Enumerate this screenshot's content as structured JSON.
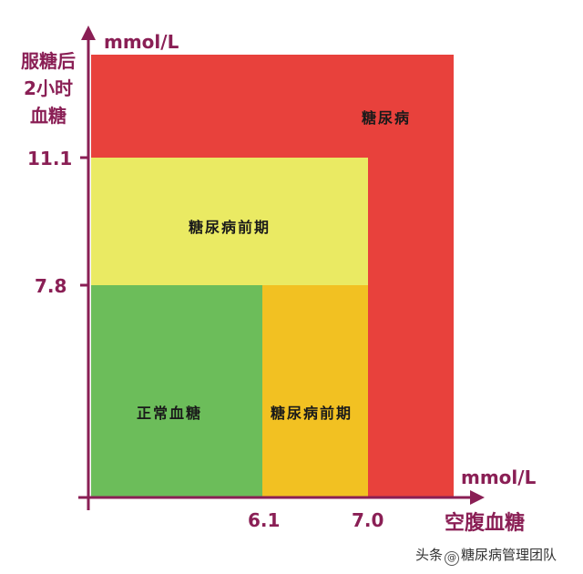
{
  "colors": {
    "diabetes": "#e8413c",
    "prediabetes_upper": "#eaea63",
    "prediabetes_right": "#f2c122",
    "normal": "#6cbd5a",
    "axis": "#8a1f55"
  },
  "axes": {
    "y_unit": "mmol/L",
    "x_unit": "mmol/L",
    "y_title_lines": [
      "服糖后",
      "2小时",
      "血糖"
    ],
    "x_title": "空腹血糖",
    "y_ticks": [
      "11.1",
      "7.8"
    ],
    "x_ticks": [
      "6.1",
      "7.0"
    ]
  },
  "zones": {
    "diabetes": "糖尿病",
    "prediabetes_upper": "糖尿病前期",
    "normal": "正常血糖",
    "prediabetes_right": "糖尿病前期"
  },
  "watermark": {
    "prefix": "头条",
    "handle": "糖尿病管理团队"
  }
}
